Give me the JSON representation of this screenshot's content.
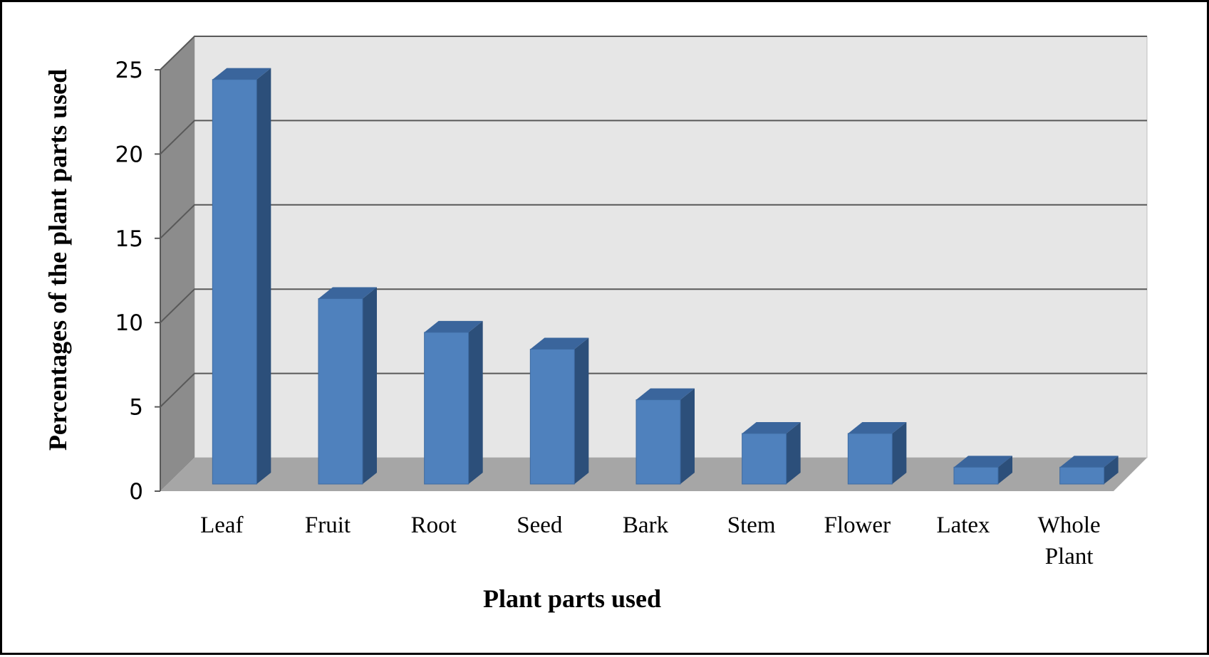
{
  "chart_data": {
    "type": "bar",
    "style": "3d-column",
    "categories": [
      "Leaf",
      "Fruit",
      "Root",
      "Seed",
      "Bark",
      "Stem",
      "Flower",
      "Latex",
      "Whole Plant"
    ],
    "category_lines": [
      [
        "Leaf"
      ],
      [
        "Fruit"
      ],
      [
        "Root"
      ],
      [
        "Seed"
      ],
      [
        "Bark"
      ],
      [
        "Stem"
      ],
      [
        "Flower"
      ],
      [
        "Latex"
      ],
      [
        "Whole",
        "Plant"
      ]
    ],
    "values": [
      24,
      11,
      9,
      8,
      5,
      3,
      3,
      1,
      1
    ],
    "title": "",
    "xlabel": "Plant parts used",
    "ylabel": "Percentages of the plant parts used",
    "ylim": [
      0,
      25
    ],
    "yticks": [
      "0",
      "5",
      "10",
      "15",
      "20",
      "25"
    ],
    "grid": true,
    "legend": "none",
    "colors": {
      "bar_front": "#4f81bd",
      "bar_side": "#2c4f7a",
      "bar_top": "#3a659c",
      "back_wall": "#e6e6e6",
      "side_wall": "#8c8c8c",
      "floor": "#a6a6a6",
      "gridline": "#595959"
    }
  }
}
